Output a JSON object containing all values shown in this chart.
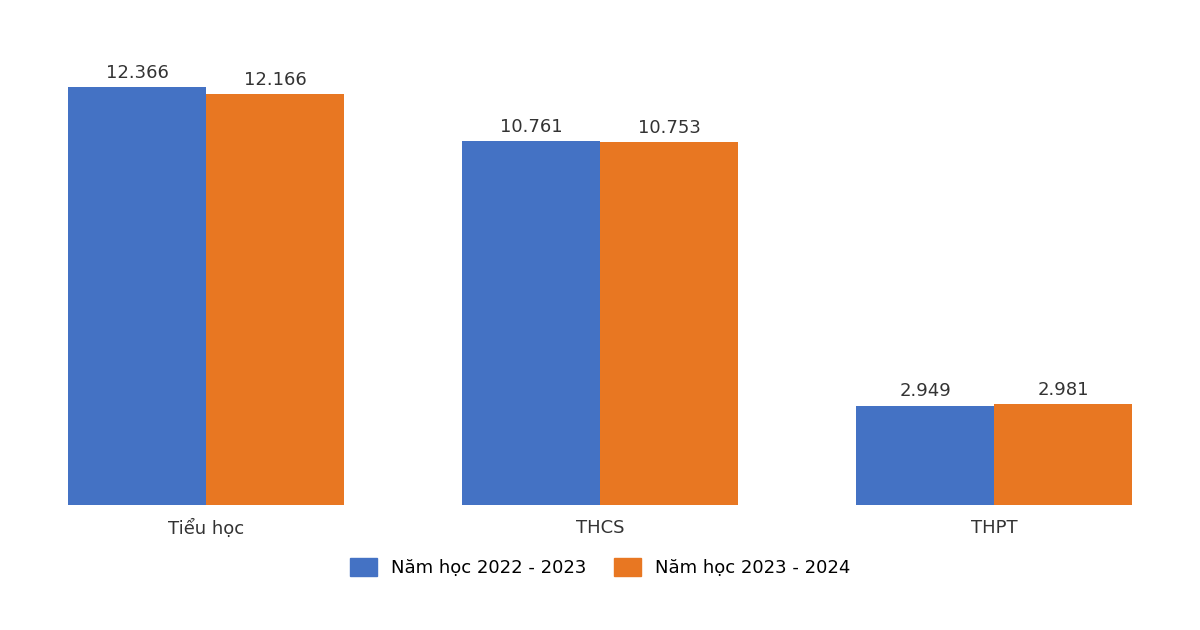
{
  "categories": [
    "Tiểu học",
    "THCS",
    "THPT"
  ],
  "series": [
    {
      "label": "Năm học 2022 - 2023",
      "values": [
        12366,
        10761,
        2949
      ],
      "color": "#4472C4"
    },
    {
      "label": "Năm học 2023 - 2024",
      "values": [
        12166,
        10753,
        2981
      ],
      "color": "#E87722"
    }
  ],
  "bar_labels": [
    [
      "12.366",
      "12.166"
    ],
    [
      "10.761",
      "10.753"
    ],
    [
      "2.949",
      "2.981"
    ]
  ],
  "ylim": [
    0,
    14500
  ],
  "background_color": "#ffffff",
  "grid_color": "#cccccc",
  "bar_width": 0.35,
  "label_fontsize": 13,
  "tick_fontsize": 13,
  "legend_fontsize": 13
}
